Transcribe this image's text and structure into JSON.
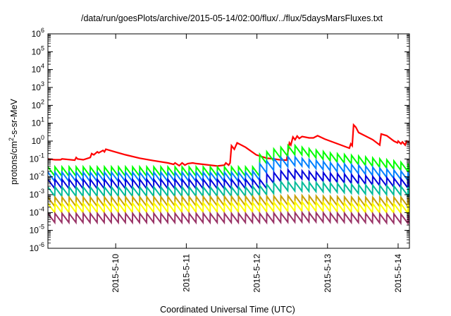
{
  "chart_data": {
    "type": "line",
    "title": "/data/run/goesPlots/archive/2015-05-14/02:00/flux/../flux/5daysMarsFluxes.txt",
    "xlabel": "Coordinated Universal Time (UTC)",
    "ylabel_parts": {
      "base": "protons/cm",
      "sup": "2",
      "rest": "-s-sr-MeV"
    },
    "y_scale": "log",
    "ylim": [
      1e-06,
      1000000.0
    ],
    "x_unit": "day",
    "x_start": "2015-05-09 01:00",
    "x_end": "2015-05-14 01:00",
    "grid": false,
    "legend": "none",
    "y_ticks": [
      {
        "value": 1e-06,
        "base": "10",
        "exp": "-6"
      },
      {
        "value": 1e-05,
        "base": "10",
        "exp": "-5"
      },
      {
        "value": 0.0001,
        "base": "10",
        "exp": "-4"
      },
      {
        "value": 0.001,
        "base": "10",
        "exp": "-3"
      },
      {
        "value": 0.01,
        "base": "10",
        "exp": "-2"
      },
      {
        "value": 0.1,
        "base": "10",
        "exp": "-1"
      },
      {
        "value": 1,
        "base": "10",
        "exp": "0"
      },
      {
        "value": 10.0,
        "base": "10",
        "exp": "1"
      },
      {
        "value": 100.0,
        "base": "10",
        "exp": "2"
      },
      {
        "value": 1000.0,
        "base": "10",
        "exp": "3"
      },
      {
        "value": 10000.0,
        "base": "10",
        "exp": "4"
      },
      {
        "value": 100000.0,
        "base": "10",
        "exp": "5"
      },
      {
        "value": 1000000.0,
        "base": "10",
        "exp": "6"
      }
    ],
    "x_ticks": [
      {
        "label": "2015-5-10",
        "day": 0.96
      },
      {
        "label": "2015-5-11",
        "day": 1.96
      },
      {
        "label": "2015-5-12",
        "day": 2.96
      },
      {
        "label": "2015-5-13",
        "day": 3.96
      },
      {
        "label": "2015-5-14",
        "day": 4.96
      }
    ],
    "series": [
      {
        "color": "#ff0000",
        "width": 2.2,
        "points": [
          [
            0.0,
            0.1
          ],
          [
            0.1,
            0.09
          ],
          [
            0.18,
            0.09
          ],
          [
            0.2,
            0.1
          ],
          [
            0.38,
            0.085
          ],
          [
            0.4,
            0.12
          ],
          [
            0.42,
            0.1
          ],
          [
            0.5,
            0.09
          ],
          [
            0.6,
            0.12
          ],
          [
            0.62,
            0.2
          ],
          [
            0.65,
            0.17
          ],
          [
            0.7,
            0.25
          ],
          [
            0.72,
            0.22
          ],
          [
            0.78,
            0.3
          ],
          [
            0.8,
            0.25
          ],
          [
            0.82,
            0.35
          ],
          [
            0.95,
            0.25
          ],
          [
            1.1,
            0.17
          ],
          [
            1.3,
            0.11
          ],
          [
            1.5,
            0.08
          ],
          [
            1.7,
            0.06
          ],
          [
            1.78,
            0.05
          ],
          [
            1.8,
            0.06
          ],
          [
            1.86,
            0.042
          ],
          [
            1.9,
            0.06
          ],
          [
            1.94,
            0.045
          ],
          [
            1.98,
            0.055
          ],
          [
            2.05,
            0.06
          ],
          [
            2.1,
            0.055
          ],
          [
            2.2,
            0.05
          ],
          [
            2.4,
            0.04
          ],
          [
            2.5,
            0.045
          ],
          [
            2.52,
            0.06
          ],
          [
            2.56,
            0.045
          ],
          [
            2.58,
            0.06
          ],
          [
            2.6,
            0.55
          ],
          [
            2.64,
            0.35
          ],
          [
            2.68,
            0.8
          ],
          [
            2.8,
            0.45
          ],
          [
            2.95,
            0.17
          ],
          [
            3.1,
            0.11
          ],
          [
            3.2,
            0.1
          ],
          [
            3.28,
            0.09
          ],
          [
            3.38,
            0.085
          ],
          [
            3.42,
            0.8
          ],
          [
            3.44,
            0.6
          ],
          [
            3.47,
            1.7
          ],
          [
            3.5,
            1.2
          ],
          [
            3.53,
            1.9
          ],
          [
            3.56,
            1.4
          ],
          [
            3.6,
            1.8
          ],
          [
            3.7,
            1.5
          ],
          [
            3.76,
            1.5
          ],
          [
            3.82,
            2.0
          ],
          [
            3.92,
            1.3
          ],
          [
            4.15,
            0.6
          ],
          [
            4.27,
            0.4
          ],
          [
            4.29,
            0.7
          ],
          [
            4.31,
            0.55
          ],
          [
            4.33,
            8.0
          ],
          [
            4.36,
            6.0
          ],
          [
            4.4,
            3.0
          ],
          [
            4.6,
            1.2
          ],
          [
            4.7,
            0.6
          ],
          [
            4.72,
            2.5
          ],
          [
            4.8,
            2.0
          ],
          [
            4.9,
            1.0
          ],
          [
            4.95,
            0.8
          ],
          [
            4.96,
            1.0
          ],
          [
            5.0,
            0.7
          ],
          [
            5.02,
            0.9
          ],
          [
            5.06,
            0.6
          ],
          [
            5.08,
            1.0
          ],
          [
            5.12,
            0.9
          ]
        ]
      },
      {
        "color": "#00ff00",
        "width": 2.0,
        "sawtooth": true,
        "period": 0.1,
        "base": [
          [
            0.0,
            0.02
          ],
          [
            2.8,
            0.02
          ],
          [
            2.9,
            0.02
          ],
          [
            2.92,
            0.05
          ],
          [
            3.0,
            0.1
          ],
          [
            3.2,
            0.2
          ],
          [
            3.45,
            0.35
          ],
          [
            3.6,
            0.25
          ],
          [
            4.0,
            0.12
          ],
          [
            4.4,
            0.08
          ],
          [
            4.8,
            0.05
          ],
          [
            5.12,
            0.03
          ]
        ]
      },
      {
        "color": "#0080ff",
        "width": 2.0,
        "sawtooth": true,
        "period": 0.1,
        "base": [
          [
            0.0,
            0.01
          ],
          [
            2.8,
            0.01
          ],
          [
            2.92,
            0.012
          ],
          [
            3.0,
            0.03
          ],
          [
            3.2,
            0.06
          ],
          [
            3.45,
            0.08
          ],
          [
            3.6,
            0.06
          ],
          [
            4.0,
            0.035
          ],
          [
            4.4,
            0.025
          ],
          [
            4.8,
            0.015
          ],
          [
            5.12,
            0.01
          ]
        ]
      },
      {
        "color": "#0000dd",
        "width": 2.0,
        "sawtooth": true,
        "period": 0.1,
        "base": [
          [
            0.0,
            0.004
          ],
          [
            2.8,
            0.004
          ],
          [
            3.0,
            0.004
          ],
          [
            3.1,
            0.008
          ],
          [
            3.3,
            0.012
          ],
          [
            3.45,
            0.015
          ],
          [
            3.6,
            0.012
          ],
          [
            4.0,
            0.009
          ],
          [
            4.4,
            0.007
          ],
          [
            4.8,
            0.005
          ],
          [
            5.12,
            0.004
          ]
        ]
      },
      {
        "color": "#00bb99",
        "width": 2.0,
        "sawtooth": true,
        "period": 0.1,
        "base": [
          [
            0.0,
            0.0015
          ],
          [
            2.8,
            0.0015
          ],
          [
            3.0,
            0.0018
          ],
          [
            3.3,
            0.003
          ],
          [
            3.6,
            0.0028
          ],
          [
            4.0,
            0.0025
          ],
          [
            4.4,
            0.002
          ],
          [
            4.8,
            0.0018
          ],
          [
            5.12,
            0.0015
          ]
        ]
      },
      {
        "color": "#c8a000",
        "width": 2.0,
        "sawtooth": true,
        "period": 0.1,
        "base": [
          [
            0.0,
            0.0004
          ],
          [
            3.0,
            0.00045
          ],
          [
            3.6,
            0.0005
          ],
          [
            4.4,
            0.0004
          ],
          [
            5.12,
            0.0004
          ]
        ]
      },
      {
        "color": "#ffff00",
        "width": 2.0,
        "sawtooth": true,
        "period": 0.1,
        "base": [
          [
            0.0,
            0.00018
          ],
          [
            3.0,
            0.0002
          ],
          [
            3.6,
            0.00022
          ],
          [
            4.4,
            0.00018
          ],
          [
            5.12,
            0.00017
          ]
        ]
      },
      {
        "color": "#993366",
        "width": 2.0,
        "sawtooth": true,
        "period": 0.1,
        "base": [
          [
            0.0,
            5e-05
          ],
          [
            3.0,
            5e-05
          ],
          [
            3.6,
            5.5e-05
          ],
          [
            4.4,
            5e-05
          ],
          [
            5.12,
            4.5e-05
          ]
        ]
      }
    ]
  }
}
